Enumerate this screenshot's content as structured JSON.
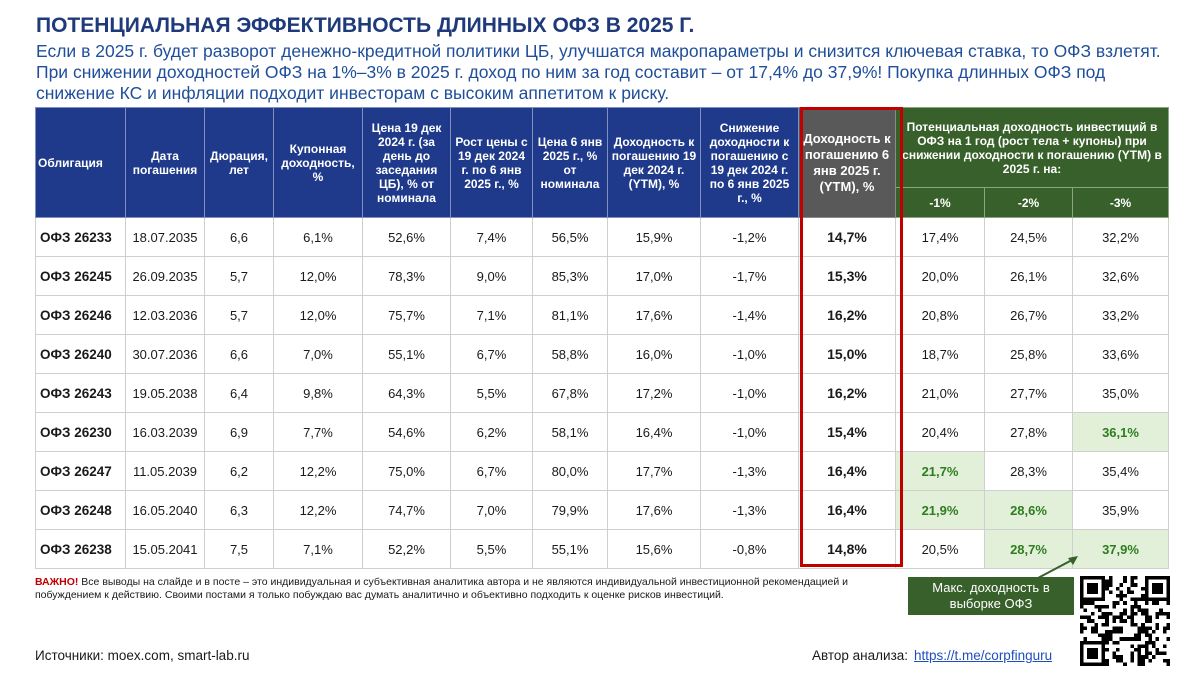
{
  "title": "ПОТЕНЦИАЛЬНАЯ ЭФФЕКТИВНОСТЬ ДЛИННЫХ ОФЗ В 2025 Г.",
  "subtitle": "Если в 2025 г. будет разворот денежно-кредитной политики ЦБ, улучшатся макропараметры и снизится ключевая ставка, то ОФЗ взлетят. При снижении доходностей ОФЗ на 1%–3% в 2025 г. доход по ним за год составит – от 17,4% до 37,9%! Покупка длинных ОФЗ под снижение КС и инфляции подходит инвесторам с высоким аппетитом к риску.",
  "headers": {
    "bond": "Облигация",
    "maturity": "Дата погашения",
    "duration": "Дюрация, лет",
    "coupon": "Купонная доходность, %",
    "price_dec19": "Цена 19 дек 2024 г. (за день до заседания ЦБ), % от номинала",
    "price_growth": "Рост цены с 19 дек 2024 г. по 6 янв 2025 г., %",
    "price_jan6": "Цена 6 янв 2025 г., % от номинала",
    "ytm_dec19": "Доходность к погашению 19 дек 2024 г. (YTM), %",
    "ytm_drop": "Снижение доходности к погашению с 19 дек 2024 г. по 6 янв 2025 г., %",
    "ytm_jan6": "Доходность к погашению 6 янв 2025 г. (YTM), %",
    "potential": "Потенциальная доходность инвестиций в ОФЗ на 1 год (рост тела + купоны) при снижении доходности к погашению (YTM) в 2025 г. на:",
    "s1": "-1%",
    "s2": "-2%",
    "s3": "-3%"
  },
  "rows": [
    {
      "bond": "ОФЗ 26233",
      "maturity": "18.07.2035",
      "duration": "6,6",
      "coupon": "6,1%",
      "price_dec19": "52,6%",
      "growth": "7,4%",
      "price_jan6": "56,5%",
      "ytm_dec19": "15,9%",
      "ytm_drop": "-1,2%",
      "ytm_jan6": "14,7%",
      "s1": "17,4%",
      "s2": "24,5%",
      "s3": "32,2%"
    },
    {
      "bond": "ОФЗ 26245",
      "maturity": "26.09.2035",
      "duration": "5,7",
      "coupon": "12,0%",
      "price_dec19": "78,3%",
      "growth": "9,0%",
      "price_jan6": "85,3%",
      "ytm_dec19": "17,0%",
      "ytm_drop": "-1,7%",
      "ytm_jan6": "15,3%",
      "s1": "20,0%",
      "s2": "26,1%",
      "s3": "32,6%"
    },
    {
      "bond": "ОФЗ 26246",
      "maturity": "12.03.2036",
      "duration": "5,7",
      "coupon": "12,0%",
      "price_dec19": "75,7%",
      "growth": "7,1%",
      "price_jan6": "81,1%",
      "ytm_dec19": "17,6%",
      "ytm_drop": "-1,4%",
      "ytm_jan6": "16,2%",
      "s1": "20,8%",
      "s2": "26,7%",
      "s3": "33,2%"
    },
    {
      "bond": "ОФЗ 26240",
      "maturity": "30.07.2036",
      "duration": "6,6",
      "coupon": "7,0%",
      "price_dec19": "55,1%",
      "growth": "6,7%",
      "price_jan6": "58,8%",
      "ytm_dec19": "16,0%",
      "ytm_drop": "-1,0%",
      "ytm_jan6": "15,0%",
      "s1": "18,7%",
      "s2": "25,8%",
      "s3": "33,6%"
    },
    {
      "bond": "ОФЗ 26243",
      "maturity": "19.05.2038",
      "duration": "6,4",
      "coupon": "9,8%",
      "price_dec19": "64,3%",
      "growth": "5,5%",
      "price_jan6": "67,8%",
      "ytm_dec19": "17,2%",
      "ytm_drop": "-1,0%",
      "ytm_jan6": "16,2%",
      "s1": "21,0%",
      "s2": "27,7%",
      "s3": "35,0%"
    },
    {
      "bond": "ОФЗ 26230",
      "maturity": "16.03.2039",
      "duration": "6,9",
      "coupon": "7,7%",
      "price_dec19": "54,6%",
      "growth": "6,2%",
      "price_jan6": "58,1%",
      "ytm_dec19": "16,4%",
      "ytm_drop": "-1,0%",
      "ytm_jan6": "15,4%",
      "s1": "20,4%",
      "s2": "27,8%",
      "s3": "36,1%"
    },
    {
      "bond": "ОФЗ 26247",
      "maturity": "11.05.2039",
      "duration": "6,2",
      "coupon": "12,2%",
      "price_dec19": "75,0%",
      "growth": "6,7%",
      "price_jan6": "80,0%",
      "ytm_dec19": "17,7%",
      "ytm_drop": "-1,3%",
      "ytm_jan6": "16,4%",
      "s1": "21,7%",
      "s2": "28,3%",
      "s3": "35,4%"
    },
    {
      "bond": "ОФЗ 26248",
      "maturity": "16.05.2040",
      "duration": "6,3",
      "coupon": "12,2%",
      "price_dec19": "74,7%",
      "growth": "7,0%",
      "price_jan6": "79,9%",
      "ytm_dec19": "17,6%",
      "ytm_drop": "-1,3%",
      "ytm_jan6": "16,4%",
      "s1": "21,9%",
      "s2": "28,6%",
      "s3": "35,9%"
    },
    {
      "bond": "ОФЗ 26238",
      "maturity": "15.05.2041",
      "duration": "7,5",
      "coupon": "7,1%",
      "price_dec19": "52,2%",
      "growth": "5,5%",
      "price_jan6": "55,1%",
      "ytm_dec19": "15,6%",
      "ytm_drop": "-0,8%",
      "ytm_jan6": "14,8%",
      "s1": "20,5%",
      "s2": "28,7%",
      "s3": "37,9%"
    }
  ],
  "highlighted_cells": [
    {
      "row": 5,
      "col": "s3"
    },
    {
      "row": 6,
      "col": "s1"
    },
    {
      "row": 7,
      "col": "s1"
    },
    {
      "row": 7,
      "col": "s2"
    },
    {
      "row": 8,
      "col": "s2"
    },
    {
      "row": 8,
      "col": "s3"
    }
  ],
  "note": {
    "warn": "ВАЖНО!",
    "text": " Все выводы на слайде и в посте – это индивидуальная и субъективная аналитика автора и не являются индивидуальной инвестиционной рекомендацией и побуждением к действию. Своими постами я только побуждаю вас думать аналитично и объективно подходить к оценке рисков инвестиций."
  },
  "callout": "Макс. доходность в выборке ОФЗ",
  "sources": "Источники:  moex.com,  smart-lab.ru",
  "author": {
    "label": "Автор анализа:",
    "link": "https://t.me/corpfinguru"
  },
  "colors": {
    "title": "#1f3a7a",
    "header_blue": "#1f3a8a",
    "header_green": "#37602a",
    "header_gray": "#595959",
    "highlight_bg": "#e2efd9",
    "highlight_text": "#2e7d1f",
    "frame_red": "#c00000"
  }
}
